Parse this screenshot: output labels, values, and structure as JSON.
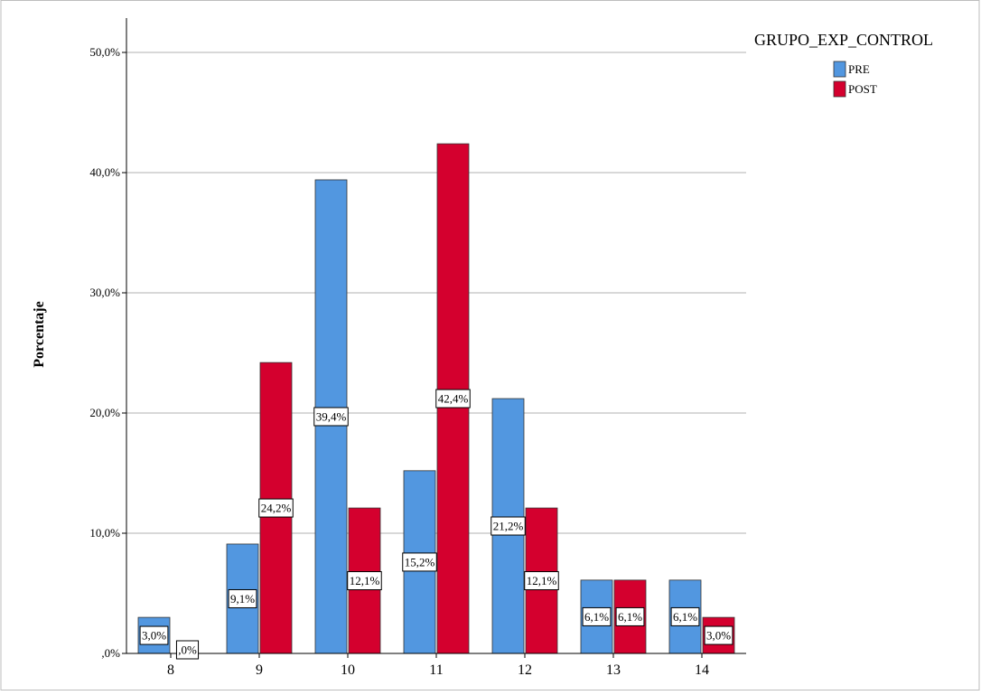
{
  "chart_data": {
    "type": "bar",
    "categories": [
      "8",
      "9",
      "10",
      "11",
      "12",
      "13",
      "14"
    ],
    "series": [
      {
        "name": "PRE",
        "color": "#5297e0",
        "values": [
          3.0,
          9.1,
          39.4,
          15.2,
          21.2,
          6.1,
          6.1
        ],
        "labels": [
          "3,0%",
          "9,1%",
          "39,4%",
          "15,2%",
          "21,2%",
          "6,1%",
          "6,1%"
        ]
      },
      {
        "name": "POST",
        "color": "#d4002e",
        "values": [
          0.0,
          24.2,
          12.1,
          42.4,
          12.1,
          6.1,
          3.0
        ],
        "labels": [
          ",0%",
          "24,2%",
          "12,1%",
          "42,4%",
          "12,1%",
          "6,1%",
          "3,0%"
        ]
      }
    ],
    "ylabel": "Porcentaje",
    "xlabel": "",
    "ylim": [
      0,
      52
    ],
    "yticks": [
      0,
      10,
      20,
      30,
      40,
      50
    ],
    "ytick_labels": [
      ",0%",
      "10,0%",
      "20,0%",
      "30,0%",
      "40,0%",
      "50,0%"
    ],
    "grid": true,
    "legend": {
      "title": "GRUPO_EXP_CONTROL",
      "placement": "top-right"
    }
  }
}
